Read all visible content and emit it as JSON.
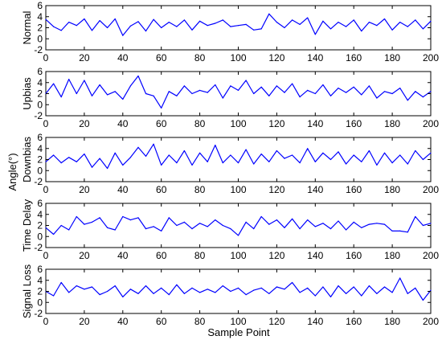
{
  "chart_data": {
    "type": "line",
    "shared_ylabel": "Angle(°)",
    "xlabel": "Sample Point",
    "xlim": [
      0,
      200
    ],
    "xticks": [
      0,
      20,
      40,
      60,
      80,
      100,
      120,
      140,
      160,
      180,
      200
    ],
    "yticks": [
      -2,
      0,
      2,
      4,
      6
    ],
    "line_color": "#0000ff",
    "grid": false,
    "panels": [
      {
        "ylabel": "Normal",
        "ylim": [
          -2,
          6
        ],
        "x": [
          0,
          4,
          8,
          12,
          16,
          20,
          24,
          28,
          32,
          36,
          40,
          44,
          48,
          52,
          56,
          60,
          64,
          68,
          72,
          76,
          80,
          84,
          88,
          92,
          96,
          100,
          104,
          108,
          112,
          116,
          120,
          124,
          128,
          132,
          136,
          140,
          144,
          148,
          152,
          156,
          160,
          164,
          168,
          172,
          176,
          180,
          184,
          188,
          192,
          196,
          200
        ],
        "y": [
          3.5,
          2.2,
          1.5,
          3.0,
          2.4,
          3.6,
          1.5,
          3.3,
          2.0,
          3.6,
          0.6,
          2.3,
          3.1,
          1.4,
          3.5,
          2.0,
          3.0,
          2.2,
          3.4,
          1.6,
          3.2,
          2.4,
          2.8,
          3.4,
          2.2,
          2.4,
          2.6,
          1.6,
          1.8,
          4.5,
          3.0,
          2.0,
          3.4,
          2.6,
          3.8,
          0.8,
          3.2,
          1.8,
          3.0,
          2.2,
          3.4,
          1.4,
          3.0,
          2.4,
          3.6,
          1.6,
          3.0,
          2.2,
          3.4,
          1.8,
          3.2
        ]
      },
      {
        "ylabel": "Upbias",
        "ylim": [
          -2,
          6
        ],
        "x": [
          0,
          4,
          8,
          12,
          16,
          20,
          24,
          28,
          32,
          36,
          40,
          44,
          48,
          52,
          56,
          60,
          64,
          68,
          72,
          76,
          80,
          84,
          88,
          92,
          96,
          100,
          104,
          108,
          112,
          116,
          120,
          124,
          128,
          132,
          136,
          140,
          144,
          148,
          152,
          156,
          160,
          164,
          168,
          172,
          176,
          180,
          184,
          188,
          192,
          196,
          200
        ],
        "y": [
          2.0,
          3.8,
          1.4,
          4.6,
          2.0,
          4.4,
          1.6,
          3.6,
          1.8,
          2.4,
          1.0,
          3.4,
          5.2,
          2.0,
          1.6,
          -0.6,
          2.4,
          1.6,
          3.4,
          2.0,
          2.6,
          2.2,
          3.6,
          1.2,
          3.4,
          2.6,
          4.4,
          2.0,
          3.2,
          1.6,
          3.4,
          2.2,
          3.8,
          1.4,
          2.6,
          2.0,
          3.6,
          1.6,
          3.0,
          2.2,
          3.2,
          1.8,
          3.4,
          1.2,
          2.4,
          2.0,
          3.0,
          0.8,
          2.4,
          1.4,
          2.4
        ]
      },
      {
        "ylabel": "Downbias",
        "ylim": [
          -2,
          6
        ],
        "x": [
          0,
          4,
          8,
          12,
          16,
          20,
          24,
          28,
          32,
          36,
          40,
          44,
          48,
          52,
          56,
          60,
          64,
          68,
          72,
          76,
          80,
          84,
          88,
          92,
          96,
          100,
          104,
          108,
          112,
          116,
          120,
          124,
          128,
          132,
          136,
          140,
          144,
          148,
          152,
          156,
          160,
          164,
          168,
          172,
          176,
          180,
          184,
          188,
          192,
          196,
          200
        ],
        "y": [
          1.6,
          2.8,
          1.4,
          2.4,
          1.6,
          3.0,
          0.6,
          2.2,
          0.4,
          3.2,
          1.0,
          2.4,
          4.2,
          2.6,
          4.8,
          1.0,
          2.8,
          1.4,
          3.6,
          1.0,
          3.2,
          1.6,
          4.6,
          1.4,
          2.8,
          1.4,
          3.8,
          1.2,
          3.0,
          1.6,
          3.6,
          2.2,
          2.8,
          1.4,
          4.0,
          1.6,
          3.2,
          2.0,
          3.4,
          1.2,
          2.8,
          1.6,
          3.6,
          1.0,
          3.2,
          1.4,
          2.8,
          1.2,
          3.6,
          2.0,
          3.2
        ]
      },
      {
        "ylabel": "Time Delay",
        "ylim": [
          -2,
          6
        ],
        "x": [
          0,
          4,
          8,
          12,
          16,
          20,
          24,
          28,
          32,
          36,
          40,
          44,
          48,
          52,
          56,
          60,
          64,
          68,
          72,
          76,
          80,
          84,
          88,
          92,
          96,
          100,
          104,
          108,
          112,
          116,
          120,
          124,
          128,
          132,
          136,
          140,
          144,
          148,
          152,
          156,
          160,
          164,
          168,
          172,
          176,
          180,
          184,
          188,
          192,
          196,
          200
        ],
        "y": [
          1.6,
          0.4,
          2.0,
          1.2,
          3.6,
          2.2,
          2.6,
          3.4,
          1.6,
          1.2,
          3.6,
          3.0,
          3.4,
          1.4,
          1.8,
          1.0,
          3.4,
          2.0,
          2.6,
          1.4,
          2.4,
          1.8,
          3.0,
          2.0,
          1.4,
          0.2,
          2.6,
          1.4,
          3.6,
          2.2,
          3.0,
          1.6,
          3.2,
          1.4,
          3.0,
          1.8,
          2.4,
          1.4,
          2.8,
          1.2,
          2.6,
          1.6,
          2.2,
          2.4,
          2.2,
          1.0,
          1.0,
          0.8,
          3.6,
          2.0,
          2.4
        ]
      },
      {
        "ylabel": "Signal Loss",
        "ylim": [
          -2,
          6
        ],
        "x": [
          0,
          4,
          8,
          12,
          16,
          20,
          24,
          28,
          32,
          36,
          40,
          44,
          48,
          52,
          56,
          60,
          64,
          68,
          72,
          76,
          80,
          84,
          88,
          92,
          96,
          100,
          104,
          108,
          112,
          116,
          120,
          124,
          128,
          132,
          136,
          140,
          144,
          148,
          152,
          156,
          160,
          164,
          168,
          172,
          176,
          180,
          184,
          188,
          192,
          196,
          200
        ],
        "y": [
          2.0,
          1.2,
          3.6,
          1.8,
          3.0,
          2.4,
          2.8,
          1.4,
          2.0,
          3.0,
          1.0,
          2.4,
          1.6,
          3.0,
          1.6,
          2.6,
          1.4,
          3.2,
          1.6,
          2.6,
          1.8,
          2.4,
          1.8,
          3.0,
          2.0,
          2.6,
          1.4,
          2.2,
          2.6,
          1.6,
          2.8,
          2.4,
          3.6,
          1.8,
          2.6,
          1.2,
          2.8,
          1.0,
          3.0,
          1.6,
          2.8,
          1.2,
          3.0,
          1.6,
          2.8,
          1.8,
          4.4,
          1.6,
          2.6,
          0.4,
          2.2
        ]
      }
    ]
  }
}
